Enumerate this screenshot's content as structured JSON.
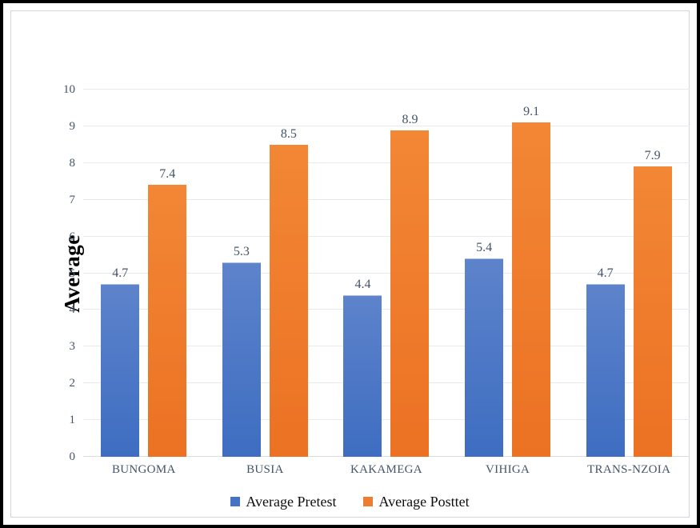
{
  "chart_data": {
    "type": "bar",
    "categories": [
      "BUNGOMA",
      "BUSIA",
      "KAKAMEGA",
      "VIHIGA",
      "TRANS-NZOIA"
    ],
    "series": [
      {
        "name": "Average Pretest",
        "legend_color": "#4472c4",
        "gradient_top": "#5d83cb",
        "gradient_bottom": "#3e6dc1",
        "values": [
          4.7,
          5.3,
          4.4,
          5.4,
          4.7
        ]
      },
      {
        "name": "Average Posttet",
        "legend_color": "#ed7d31",
        "gradient_top": "#f28735",
        "gradient_bottom": "#ec7123",
        "values": [
          7.4,
          8.5,
          8.9,
          9.1,
          7.9
        ]
      }
    ],
    "title": "",
    "xlabel": "",
    "ylabel": "Average",
    "ylim": [
      0,
      10
    ],
    "yticks": [
      0,
      1,
      2,
      3,
      4,
      5,
      6,
      7,
      8,
      9,
      10
    ],
    "grid": true,
    "legend_position": "bottom",
    "data_labels": true
  },
  "colors": {
    "axis_text": "#44546a",
    "gridline": "#e7eaf1",
    "outer_border": "#000000",
    "frame_border": "#d2d5db",
    "legend_text": "#0d0d0d"
  }
}
